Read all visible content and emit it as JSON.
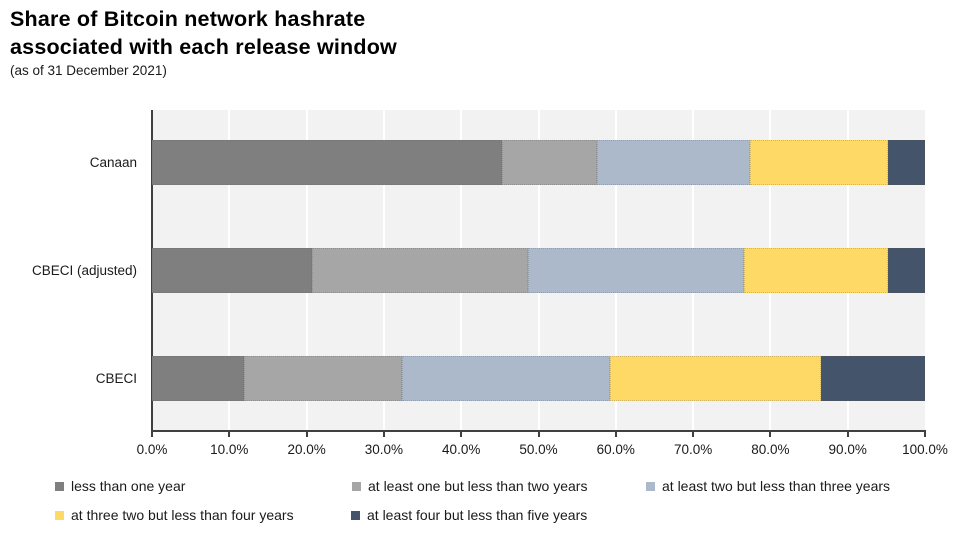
{
  "title": {
    "line1": "Share of Bitcoin network hashrate",
    "line2": "associated with each release window",
    "subtitle": "(as of 31 December 2021)"
  },
  "chart_data": {
    "type": "bar",
    "orientation": "horizontal-stacked",
    "title": "Share of Bitcoin network hashrate associated with each release window",
    "subtitle": "(as of 31 December 2021)",
    "categories": [
      "Canaan",
      "CBECI (adjusted)",
      "CBECI"
    ],
    "series": [
      {
        "name": "less than one year",
        "color": "#7F7F7F",
        "values": [
          45.3,
          20.7,
          11.9
        ]
      },
      {
        "name": "at least one but less than two years",
        "color": "#A6A6A6",
        "values": [
          12.3,
          27.9,
          20.4
        ]
      },
      {
        "name": "at least two but less than three years",
        "color": "#ACB9CA",
        "values": [
          19.8,
          28.0,
          26.9
        ]
      },
      {
        "name": "at three two but less than four years",
        "color": "#FFD966",
        "values": [
          17.8,
          18.6,
          27.3
        ]
      },
      {
        "name": "at least four but less than five years",
        "color": "#44546A",
        "values": [
          4.8,
          4.8,
          13.5
        ]
      }
    ],
    "x_ticks": [
      "0.0%",
      "10.0%",
      "20.0%",
      "30.0%",
      "40.0%",
      "50.0%",
      "60.0%",
      "70.0%",
      "80.0%",
      "90.0%",
      "100.0%"
    ],
    "xlim": [
      0,
      100
    ],
    "grid": "vertical-white-on-gray",
    "plot_background": "#F2F2F2",
    "axis_color": "#404040",
    "legend_position": "bottom",
    "legend_rows": [
      [
        0,
        1,
        2
      ],
      [
        3,
        4
      ]
    ]
  }
}
